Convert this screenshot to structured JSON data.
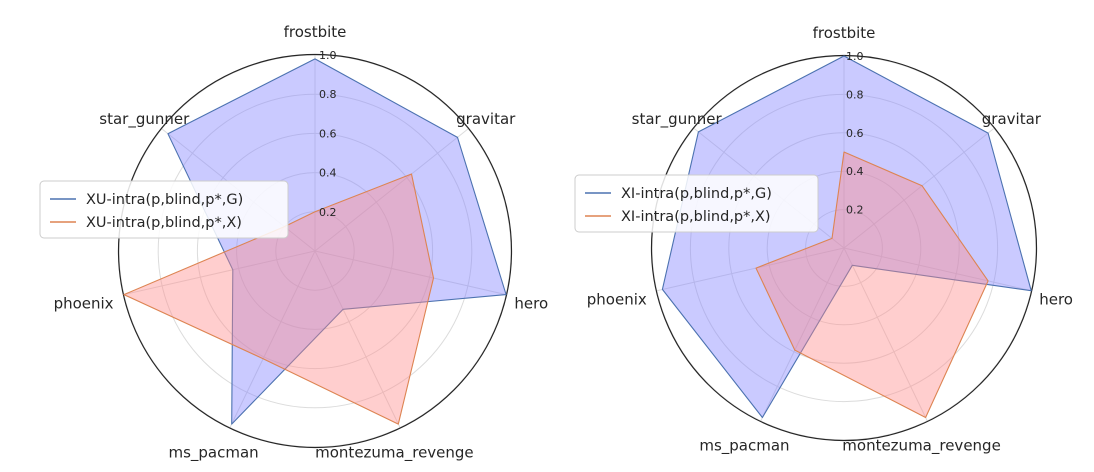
{
  "chart_data": [
    {
      "type": "radar",
      "categories": [
        "frostbite",
        "gravitar",
        "hero",
        "montezuma_revenge",
        "ms_pacman",
        "phoenix",
        "star_gunner"
      ],
      "rlim": [
        0,
        1.0
      ],
      "rticks": [
        "0.2",
        "0.4",
        "0.6",
        "0.8",
        "1.0"
      ],
      "rtick_values": [
        0.2,
        0.4,
        0.6,
        0.8,
        1.0
      ],
      "grid": true,
      "legend_position": "center-left",
      "series": [
        {
          "name": "XU-intra(p,blind,p*,G)",
          "color": "#4c72b0",
          "fill": "#8080ff",
          "values": [
            0.98,
            0.93,
            1.0,
            0.33,
            0.98,
            0.43,
            0.96
          ]
        },
        {
          "name": "XU-intra(p,blind,p*,X)",
          "color": "#dd8452",
          "fill": "#ff8a8a",
          "values": [
            0.2,
            0.63,
            0.62,
            0.98,
            0.61,
            1.0,
            0.2
          ]
        }
      ]
    },
    {
      "type": "radar",
      "categories": [
        "frostbite",
        "gravitar",
        "hero",
        "montezuma_revenge",
        "ms_pacman",
        "phoenix",
        "star_gunner"
      ],
      "rlim": [
        0,
        1.0
      ],
      "rticks": [
        "0.2",
        "0.4",
        "0.6",
        "0.8",
        "1.0"
      ],
      "rtick_values": [
        0.2,
        0.4,
        0.6,
        0.8,
        1.0
      ],
      "grid": true,
      "legend_position": "center-left",
      "series": [
        {
          "name": "XI-intra(p,blind,p*,G)",
          "color": "#4c72b0",
          "fill": "#8080ff",
          "values": [
            1.0,
            0.96,
            1.0,
            0.1,
            0.98,
            0.97,
            0.97
          ]
        },
        {
          "name": "XI-intra(p,blind,p*,X)",
          "color": "#dd8452",
          "fill": "#ff8a8a",
          "values": [
            0.5,
            0.52,
            0.77,
            0.98,
            0.59,
            0.47,
            0.08
          ]
        }
      ]
    }
  ]
}
